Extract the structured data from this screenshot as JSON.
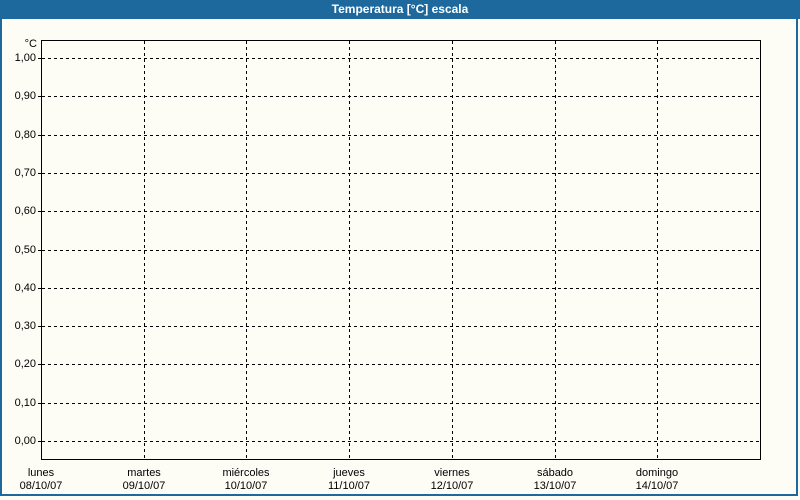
{
  "window": {
    "title": "Temperatura [°C] escala"
  },
  "colors": {
    "accent_blue": "#1d699d",
    "title_text": "#ffffff",
    "grid_line": "#000000",
    "background": "#fdfdf6"
  },
  "chart_data": {
    "type": "line",
    "title": "Temperatura [°C] escala",
    "xlabel": "",
    "ylabel": "°C",
    "ylim": [
      0.0,
      1.0
    ],
    "y_tick_step": 0.1,
    "y_tick_labels": [
      "0,00",
      "0,10",
      "0,20",
      "0,30",
      "0,40",
      "0,50",
      "0,60",
      "0,70",
      "0,80",
      "0,90",
      "1,00"
    ],
    "x_tick_labels": [
      {
        "day": "lunes",
        "date": "08/10/07"
      },
      {
        "day": "martes",
        "date": "09/10/07"
      },
      {
        "day": "miércoles",
        "date": "10/10/07"
      },
      {
        "day": "jueves",
        "date": "11/10/07"
      },
      {
        "day": "viernes",
        "date": "12/10/07"
      },
      {
        "day": "sábado",
        "date": "13/10/07"
      },
      {
        "day": "domingo",
        "date": "14/10/07"
      }
    ],
    "grid": "dashed",
    "legend": "none",
    "series": []
  }
}
